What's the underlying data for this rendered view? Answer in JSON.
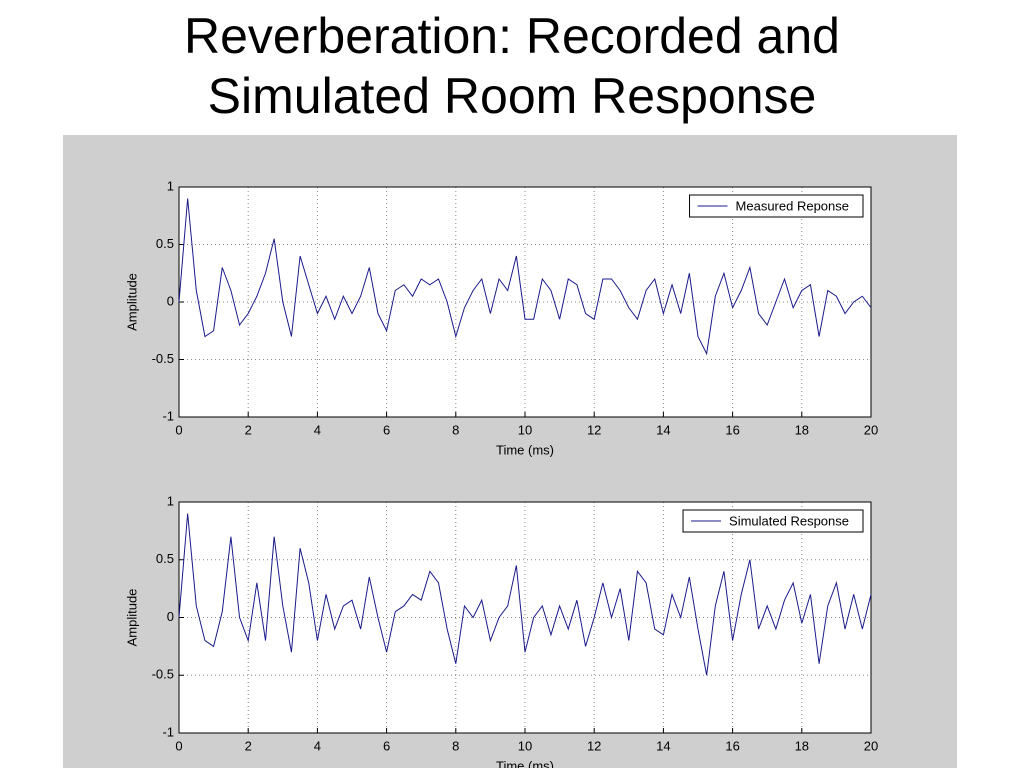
{
  "title": "Reverberation: Recorded and Simulated Room Response",
  "chart_data": [
    {
      "type": "line",
      "xlabel": "Time (ms)",
      "ylabel": "Amplitude",
      "x": [
        0,
        0.25,
        0.5,
        0.75,
        1,
        1.25,
        1.5,
        1.75,
        2,
        2.25,
        2.5,
        2.75,
        3,
        3.25,
        3.5,
        3.75,
        4,
        4.25,
        4.5,
        4.75,
        5,
        5.25,
        5.5,
        5.75,
        6,
        6.25,
        6.5,
        6.75,
        7,
        7.25,
        7.5,
        7.75,
        8,
        8.25,
        8.5,
        8.75,
        9,
        9.25,
        9.5,
        9.75,
        10,
        10.25,
        10.5,
        10.75,
        11,
        11.25,
        11.5,
        11.75,
        12,
        12.25,
        12.5,
        12.75,
        13,
        13.25,
        13.5,
        13.75,
        14,
        14.25,
        14.5,
        14.75,
        15,
        15.25,
        15.5,
        15.75,
        16,
        16.25,
        16.5,
        16.75,
        17,
        17.25,
        17.5,
        17.75,
        18,
        18.25,
        18.5,
        18.75,
        19,
        19.25,
        19.5,
        19.75,
        20
      ],
      "series": [
        {
          "name": "Measured Reponse",
          "color": "#1a1a8c",
          "values": [
            0,
            0.9,
            0.1,
            -0.3,
            -0.25,
            0.3,
            0.1,
            -0.2,
            -0.1,
            0.05,
            0.25,
            0.55,
            0,
            -0.3,
            0.4,
            0.15,
            -0.1,
            0.05,
            -0.15,
            0.05,
            -0.1,
            0.05,
            0.3,
            -0.1,
            -0.25,
            0.1,
            0.15,
            0.05,
            0.2,
            0.15,
            0.2,
            0,
            -0.3,
            -0.05,
            0.1,
            0.2,
            -0.1,
            0.2,
            0.1,
            0.4,
            -0.15,
            -0.15,
            0.2,
            0.1,
            -0.15,
            0.2,
            0.15,
            -0.1,
            -0.15,
            0.2,
            0.2,
            0.1,
            -0.05,
            -0.15,
            0.1,
            0.2,
            -0.1,
            0.15,
            -0.1,
            0.25,
            -0.3,
            -0.45,
            0.05,
            0.25,
            -0.05,
            0.1,
            0.3,
            -0.1,
            -0.2,
            0,
            0.2,
            -0.05,
            0.1,
            0.15,
            -0.3,
            0.1,
            0.05,
            -0.1,
            0,
            0.05,
            -0.05
          ]
        }
      ],
      "xlim": [
        0,
        20
      ],
      "ylim": [
        -1,
        1
      ],
      "xticks": [
        0,
        2,
        4,
        6,
        8,
        10,
        12,
        14,
        16,
        18,
        20
      ],
      "yticks": [
        -1,
        -0.5,
        0,
        0.5,
        1
      ],
      "grid": true,
      "legend": "upper right"
    },
    {
      "type": "line",
      "xlabel": "Time (ms)",
      "ylabel": "Amplitude",
      "x": [
        0,
        0.25,
        0.5,
        0.75,
        1,
        1.25,
        1.5,
        1.75,
        2,
        2.25,
        2.5,
        2.75,
        3,
        3.25,
        3.5,
        3.75,
        4,
        4.25,
        4.5,
        4.75,
        5,
        5.25,
        5.5,
        5.75,
        6,
        6.25,
        6.5,
        6.75,
        7,
        7.25,
        7.5,
        7.75,
        8,
        8.25,
        8.5,
        8.75,
        9,
        9.25,
        9.5,
        9.75,
        10,
        10.25,
        10.5,
        10.75,
        11,
        11.25,
        11.5,
        11.75,
        12,
        12.25,
        12.5,
        12.75,
        13,
        13.25,
        13.5,
        13.75,
        14,
        14.25,
        14.5,
        14.75,
        15,
        15.25,
        15.5,
        15.75,
        16,
        16.25,
        16.5,
        16.75,
        17,
        17.25,
        17.5,
        17.75,
        18,
        18.25,
        18.5,
        18.75,
        19,
        19.25,
        19.5,
        19.75,
        20
      ],
      "series": [
        {
          "name": "Simulated Response",
          "color": "#1a1a8c",
          "values": [
            0,
            0.9,
            0.1,
            -0.2,
            -0.25,
            0.05,
            0.7,
            0,
            -0.2,
            0.3,
            -0.2,
            0.7,
            0.1,
            -0.3,
            0.6,
            0.3,
            -0.2,
            0.2,
            -0.1,
            0.1,
            0.15,
            -0.1,
            0.35,
            0,
            -0.3,
            0.05,
            0.1,
            0.2,
            0.15,
            0.4,
            0.3,
            -0.1,
            -0.4,
            0.1,
            0,
            0.15,
            -0.2,
            0,
            0.1,
            0.45,
            -0.3,
            0,
            0.1,
            -0.15,
            0.1,
            -0.1,
            0.15,
            -0.25,
            0,
            0.3,
            0,
            0.25,
            -0.2,
            0.4,
            0.3,
            -0.1,
            -0.15,
            0.2,
            0,
            0.35,
            -0.1,
            -0.5,
            0.1,
            0.4,
            -0.2,
            0.2,
            0.5,
            -0.1,
            0.1,
            -0.1,
            0.15,
            0.3,
            -0.05,
            0.2,
            -0.4,
            0.1,
            0.3,
            -0.1,
            0.2,
            -0.1,
            0.2
          ]
        }
      ],
      "xlim": [
        0,
        20
      ],
      "ylim": [
        -1,
        1
      ],
      "xticks": [
        0,
        2,
        4,
        6,
        8,
        10,
        12,
        14,
        16,
        18,
        20
      ],
      "yticks": [
        -1,
        -0.5,
        0,
        0.5,
        1
      ],
      "grid": true,
      "legend": "upper right"
    }
  ]
}
